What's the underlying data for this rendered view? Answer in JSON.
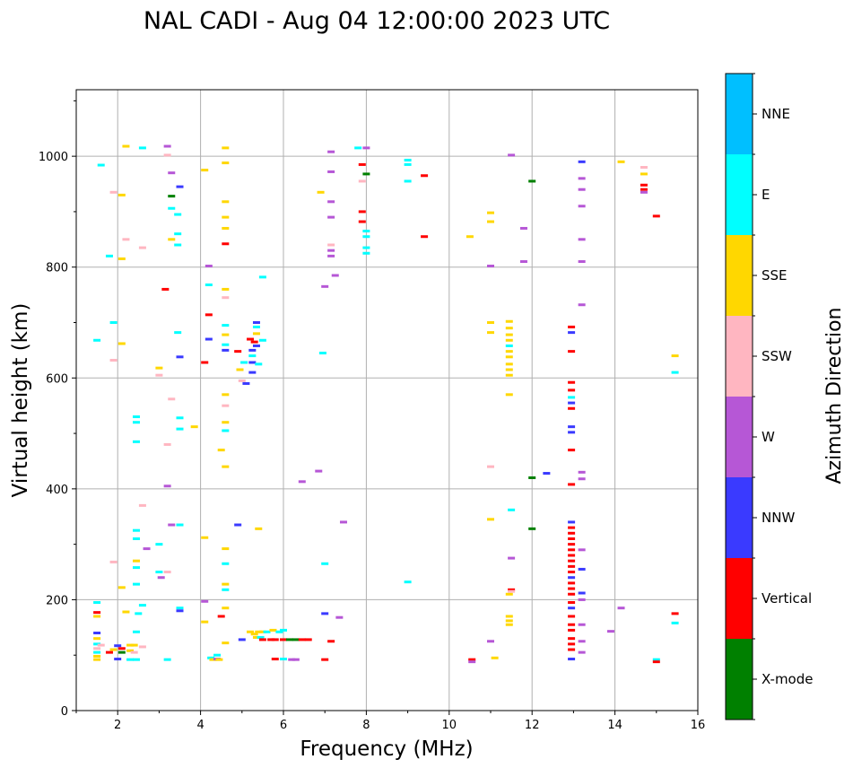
{
  "chart_data": {
    "type": "scatter",
    "title": "NAL CADI - Aug 04 12:00:00 2023 UTC",
    "xlabel": "Frequency (MHz)",
    "ylabel": "Virtual height (km)",
    "xlim": [
      1,
      16
    ],
    "ylim": [
      0,
      1120
    ],
    "xticks": [
      2,
      4,
      6,
      8,
      10,
      12,
      14,
      16
    ],
    "yticks": [
      0,
      200,
      400,
      600,
      800,
      1000
    ],
    "grid": true,
    "colorbar": {
      "label": "Azimuth Direction",
      "categories": [
        "X-mode",
        "Vertical",
        "NNW",
        "W",
        "SSW",
        "SSE",
        "E",
        "NNE"
      ],
      "colors": [
        "#008000",
        "#ff0000",
        "#3a3aff",
        "#b657d6",
        "#ffb6c1",
        "#ffd700",
        "#00ffff",
        "#00bfff"
      ]
    },
    "points": [
      [
        1.5,
        195,
        "E"
      ],
      [
        1.5,
        177,
        "Vertical"
      ],
      [
        1.5,
        170,
        "SSE"
      ],
      [
        1.5,
        140,
        "NNW"
      ],
      [
        1.5,
        130,
        "SSE"
      ],
      [
        1.5,
        120,
        "E"
      ],
      [
        1.5,
        112,
        "SSW"
      ],
      [
        1.5,
        105,
        "E"
      ],
      [
        1.5,
        98,
        "SSE"
      ],
      [
        1.5,
        92,
        "SSE"
      ],
      [
        1.6,
        118,
        "SSW"
      ],
      [
        1.8,
        105,
        "Vertical"
      ],
      [
        1.9,
        110,
        "SSE"
      ],
      [
        1.5,
        668,
        "E"
      ],
      [
        1.6,
        984,
        "E"
      ],
      [
        1.8,
        820,
        "E"
      ],
      [
        1.9,
        700,
        "E"
      ],
      [
        1.9,
        632,
        "SSW"
      ],
      [
        1.9,
        268,
        "SSW"
      ],
      [
        1.9,
        935,
        "SSW"
      ],
      [
        2.0,
        117,
        "NNW"
      ],
      [
        2.0,
        93,
        "NNW"
      ],
      [
        2.1,
        112,
        "Vertical"
      ],
      [
        2.1,
        105,
        "X-mode"
      ],
      [
        2.1,
        222,
        "SSE"
      ],
      [
        2.1,
        815,
        "SSE"
      ],
      [
        2.1,
        930,
        "SSE"
      ],
      [
        2.1,
        662,
        "SSE"
      ],
      [
        2.2,
        1018,
        "SSE"
      ],
      [
        2.2,
        850,
        "SSW"
      ],
      [
        2.2,
        178,
        "SSE"
      ],
      [
        2.3,
        118,
        "SSE"
      ],
      [
        2.3,
        108,
        "SSE"
      ],
      [
        2.3,
        92,
        "E"
      ],
      [
        2.4,
        118,
        "SSE"
      ],
      [
        2.4,
        105,
        "SSW"
      ],
      [
        2.45,
        92,
        "E"
      ],
      [
        2.45,
        270,
        "SSE"
      ],
      [
        2.45,
        258,
        "E"
      ],
      [
        2.45,
        228,
        "E"
      ],
      [
        2.45,
        325,
        "E"
      ],
      [
        2.45,
        310,
        "E"
      ],
      [
        2.45,
        142,
        "E"
      ],
      [
        2.45,
        485,
        "E"
      ],
      [
        2.45,
        520,
        "E"
      ],
      [
        2.45,
        530,
        "E"
      ],
      [
        2.5,
        175,
        "E"
      ],
      [
        2.6,
        1015,
        "E"
      ],
      [
        2.6,
        835,
        "SSW"
      ],
      [
        2.6,
        370,
        "SSW"
      ],
      [
        2.6,
        190,
        "E"
      ],
      [
        2.6,
        115,
        "SSW"
      ],
      [
        2.7,
        292,
        "W"
      ],
      [
        3.0,
        618,
        "SSE"
      ],
      [
        3.0,
        605,
        "SSW"
      ],
      [
        3.0,
        300,
        "E"
      ],
      [
        3.0,
        250,
        "E"
      ],
      [
        3.05,
        240,
        "W"
      ],
      [
        3.15,
        760,
        "Vertical"
      ],
      [
        3.2,
        1018,
        "W"
      ],
      [
        3.2,
        1002,
        "SSW"
      ],
      [
        3.2,
        480,
        "SSW"
      ],
      [
        3.2,
        405,
        "W"
      ],
      [
        3.2,
        250,
        "SSW"
      ],
      [
        3.2,
        92,
        "E"
      ],
      [
        3.3,
        970,
        "W"
      ],
      [
        3.3,
        928,
        "X-mode"
      ],
      [
        3.3,
        906,
        "E"
      ],
      [
        3.3,
        850,
        "SSE"
      ],
      [
        3.3,
        562,
        "SSW"
      ],
      [
        3.3,
        335,
        "W"
      ],
      [
        3.45,
        895,
        "E"
      ],
      [
        3.45,
        860,
        "E"
      ],
      [
        3.45,
        840,
        "E"
      ],
      [
        3.45,
        682,
        "E"
      ],
      [
        3.5,
        945,
        "NNW"
      ],
      [
        3.5,
        638,
        "NNW"
      ],
      [
        3.5,
        528,
        "E"
      ],
      [
        3.5,
        508,
        "E"
      ],
      [
        3.5,
        335,
        "E"
      ],
      [
        3.5,
        185,
        "E"
      ],
      [
        3.5,
        180,
        "NNW"
      ],
      [
        3.85,
        512,
        "SSE"
      ],
      [
        4.1,
        975,
        "SSE"
      ],
      [
        4.1,
        628,
        "Vertical"
      ],
      [
        4.1,
        312,
        "SSE"
      ],
      [
        4.1,
        197,
        "W"
      ],
      [
        4.1,
        160,
        "SSE"
      ],
      [
        4.2,
        768,
        "E"
      ],
      [
        4.2,
        714,
        "Vertical"
      ],
      [
        4.2,
        670,
        "NNW"
      ],
      [
        4.2,
        802,
        "W"
      ],
      [
        4.25,
        95,
        "E"
      ],
      [
        4.3,
        92,
        "SSE"
      ],
      [
        4.4,
        100,
        "E"
      ],
      [
        4.4,
        93,
        "W"
      ],
      [
        4.45,
        92,
        "SSE"
      ],
      [
        4.5,
        470,
        "SSE"
      ],
      [
        4.5,
        170,
        "Vertical"
      ],
      [
        4.6,
        1015,
        "SSE"
      ],
      [
        4.6,
        988,
        "SSE"
      ],
      [
        4.6,
        918,
        "SSE"
      ],
      [
        4.6,
        890,
        "SSE"
      ],
      [
        4.6,
        870,
        "SSE"
      ],
      [
        4.6,
        842,
        "Vertical"
      ],
      [
        4.6,
        760,
        "SSE"
      ],
      [
        4.6,
        745,
        "SSW"
      ],
      [
        4.6,
        695,
        "E"
      ],
      [
        4.6,
        678,
        "SSE"
      ],
      [
        4.6,
        660,
        "E"
      ],
      [
        4.6,
        650,
        "NNW"
      ],
      [
        4.6,
        570,
        "SSE"
      ],
      [
        4.6,
        550,
        "SSW"
      ],
      [
        4.6,
        520,
        "SSE"
      ],
      [
        4.6,
        505,
        "E"
      ],
      [
        4.6,
        440,
        "SSE"
      ],
      [
        4.6,
        292,
        "SSE"
      ],
      [
        4.6,
        265,
        "E"
      ],
      [
        4.6,
        228,
        "SSE"
      ],
      [
        4.6,
        218,
        "E"
      ],
      [
        4.6,
        185,
        "SSE"
      ],
      [
        4.6,
        122,
        "SSE"
      ],
      [
        4.9,
        648,
        "Vertical"
      ],
      [
        4.9,
        335,
        "NNW"
      ],
      [
        4.95,
        615,
        "SSE"
      ],
      [
        5.0,
        595,
        "SSW"
      ],
      [
        5.05,
        628,
        "E"
      ],
      [
        5.1,
        590,
        "NNW"
      ],
      [
        5.2,
        670,
        "Vertical"
      ],
      [
        5.25,
        650,
        "NNW"
      ],
      [
        5.25,
        640,
        "E"
      ],
      [
        5.25,
        628,
        "NNW"
      ],
      [
        5.25,
        610,
        "NNW"
      ],
      [
        5.3,
        665,
        "Vertical"
      ],
      [
        5.35,
        700,
        "NNW"
      ],
      [
        5.35,
        692,
        "E"
      ],
      [
        5.35,
        680,
        "SSE"
      ],
      [
        5.35,
        658,
        "NNW"
      ],
      [
        5.4,
        625,
        "E"
      ],
      [
        5.4,
        328,
        "SSE"
      ],
      [
        5.5,
        782,
        "E"
      ],
      [
        5.5,
        668,
        "E"
      ],
      [
        5.0,
        128,
        "NNW"
      ],
      [
        5.2,
        142,
        "SSE"
      ],
      [
        5.3,
        138,
        "SSE"
      ],
      [
        5.35,
        132,
        "SSE"
      ],
      [
        5.4,
        142,
        "SSE"
      ],
      [
        5.45,
        132,
        "E"
      ],
      [
        5.5,
        128,
        "Vertical"
      ],
      [
        5.5,
        142,
        "SSE"
      ],
      [
        5.6,
        142,
        "E"
      ],
      [
        5.7,
        128,
        "Vertical"
      ],
      [
        5.75,
        145,
        "SSE"
      ],
      [
        5.8,
        128,
        "Vertical"
      ],
      [
        5.9,
        142,
        "E"
      ],
      [
        6.0,
        145,
        "E"
      ],
      [
        6.0,
        128,
        "Vertical"
      ],
      [
        6.15,
        128,
        "X-mode"
      ],
      [
        6.3,
        128,
        "X-mode"
      ],
      [
        6.45,
        128,
        "Vertical"
      ],
      [
        6.6,
        128,
        "Vertical"
      ],
      [
        5.8,
        93,
        "Vertical"
      ],
      [
        6.0,
        93,
        "E"
      ],
      [
        6.2,
        92,
        "W"
      ],
      [
        6.3,
        92,
        "W"
      ],
      [
        6.45,
        413,
        "W"
      ],
      [
        6.85,
        432,
        "W"
      ],
      [
        6.9,
        935,
        "SSE"
      ],
      [
        6.95,
        645,
        "E"
      ],
      [
        7.0,
        265,
        "E"
      ],
      [
        7.0,
        765,
        "W"
      ],
      [
        7.0,
        175,
        "NNW"
      ],
      [
        7.0,
        92,
        "Vertical"
      ],
      [
        7.15,
        1008,
        "W"
      ],
      [
        7.15,
        972,
        "W"
      ],
      [
        7.15,
        918,
        "W"
      ],
      [
        7.15,
        890,
        "W"
      ],
      [
        7.15,
        840,
        "SSW"
      ],
      [
        7.15,
        830,
        "W"
      ],
      [
        7.15,
        820,
        "W"
      ],
      [
        7.15,
        125,
        "Vertical"
      ],
      [
        7.25,
        785,
        "W"
      ],
      [
        7.35,
        168,
        "W"
      ],
      [
        7.45,
        340,
        "W"
      ],
      [
        7.8,
        1015,
        "E"
      ],
      [
        7.9,
        985,
        "Vertical"
      ],
      [
        7.9,
        955,
        "SSW"
      ],
      [
        7.9,
        900,
        "Vertical"
      ],
      [
        7.9,
        882,
        "Vertical"
      ],
      [
        8.0,
        968,
        "X-mode"
      ],
      [
        8.0,
        1015,
        "W"
      ],
      [
        8.0,
        865,
        "E"
      ],
      [
        8.0,
        855,
        "E"
      ],
      [
        8.0,
        835,
        "E"
      ],
      [
        8.0,
        825,
        "E"
      ],
      [
        9.0,
        993,
        "E"
      ],
      [
        9.0,
        985,
        "E"
      ],
      [
        9.0,
        955,
        "E"
      ],
      [
        9.0,
        232,
        "E"
      ],
      [
        9.4,
        965,
        "Vertical"
      ],
      [
        9.4,
        855,
        "Vertical"
      ],
      [
        10.5,
        855,
        "SSE"
      ],
      [
        10.55,
        92,
        "Vertical"
      ],
      [
        10.55,
        88,
        "W"
      ],
      [
        11.0,
        898,
        "SSE"
      ],
      [
        11.0,
        882,
        "SSE"
      ],
      [
        11.0,
        802,
        "W"
      ],
      [
        11.0,
        700,
        "SSE"
      ],
      [
        11.0,
        682,
        "SSE"
      ],
      [
        11.0,
        440,
        "SSW"
      ],
      [
        11.0,
        345,
        "SSE"
      ],
      [
        11.0,
        125,
        "W"
      ],
      [
        11.1,
        95,
        "SSE"
      ],
      [
        11.45,
        702,
        "SSE"
      ],
      [
        11.45,
        690,
        "SSE"
      ],
      [
        11.45,
        678,
        "SSE"
      ],
      [
        11.45,
        668,
        "SSE"
      ],
      [
        11.45,
        658,
        "E"
      ],
      [
        11.45,
        648,
        "SSE"
      ],
      [
        11.45,
        638,
        "SSE"
      ],
      [
        11.45,
        625,
        "SSE"
      ],
      [
        11.45,
        615,
        "SSE"
      ],
      [
        11.45,
        605,
        "SSE"
      ],
      [
        11.45,
        570,
        "SSE"
      ],
      [
        11.45,
        210,
        "SSE"
      ],
      [
        11.45,
        170,
        "SSE"
      ],
      [
        11.45,
        162,
        "SSE"
      ],
      [
        11.45,
        155,
        "SSE"
      ],
      [
        11.5,
        1002,
        "W"
      ],
      [
        11.5,
        362,
        "E"
      ],
      [
        11.5,
        275,
        "W"
      ],
      [
        11.5,
        218,
        "Vertical"
      ],
      [
        11.5,
        215,
        "SSW"
      ],
      [
        11.8,
        870,
        "W"
      ],
      [
        11.8,
        810,
        "W"
      ],
      [
        12.0,
        955,
        "X-mode"
      ],
      [
        12.0,
        420,
        "X-mode"
      ],
      [
        12.0,
        328,
        "X-mode"
      ],
      [
        12.35,
        428,
        "NNW"
      ],
      [
        12.95,
        692,
        "Vertical"
      ],
      [
        12.95,
        682,
        "NNW"
      ],
      [
        12.95,
        648,
        "Vertical"
      ],
      [
        12.95,
        592,
        "Vertical"
      ],
      [
        12.95,
        578,
        "Vertical"
      ],
      [
        12.95,
        565,
        "E"
      ],
      [
        12.95,
        555,
        "NNW"
      ],
      [
        12.95,
        545,
        "Vertical"
      ],
      [
        12.95,
        512,
        "NNW"
      ],
      [
        12.95,
        502,
        "NNW"
      ],
      [
        12.95,
        470,
        "Vertical"
      ],
      [
        12.95,
        408,
        "Vertical"
      ],
      [
        12.95,
        340,
        "NNW"
      ],
      [
        12.95,
        330,
        "Vertical"
      ],
      [
        12.95,
        320,
        "Vertical"
      ],
      [
        12.95,
        310,
        "Vertical"
      ],
      [
        12.95,
        300,
        "Vertical"
      ],
      [
        12.95,
        290,
        "Vertical"
      ],
      [
        12.95,
        280,
        "Vertical"
      ],
      [
        12.95,
        270,
        "Vertical"
      ],
      [
        12.95,
        260,
        "Vertical"
      ],
      [
        12.95,
        250,
        "Vertical"
      ],
      [
        12.95,
        240,
        "NNW"
      ],
      [
        12.95,
        230,
        "Vertical"
      ],
      [
        12.95,
        220,
        "Vertical"
      ],
      [
        12.95,
        210,
        "Vertical"
      ],
      [
        12.95,
        195,
        "Vertical"
      ],
      [
        12.95,
        185,
        "NNW"
      ],
      [
        12.95,
        170,
        "Vertical"
      ],
      [
        12.95,
        155,
        "Vertical"
      ],
      [
        12.95,
        145,
        "Vertical"
      ],
      [
        12.95,
        130,
        "Vertical"
      ],
      [
        12.95,
        120,
        "Vertical"
      ],
      [
        12.95,
        110,
        "Vertical"
      ],
      [
        12.95,
        93,
        "NNW"
      ],
      [
        13.2,
        990,
        "NNW"
      ],
      [
        13.2,
        960,
        "W"
      ],
      [
        13.2,
        940,
        "W"
      ],
      [
        13.2,
        910,
        "W"
      ],
      [
        13.2,
        850,
        "W"
      ],
      [
        13.2,
        810,
        "W"
      ],
      [
        13.2,
        732,
        "W"
      ],
      [
        13.2,
        430,
        "W"
      ],
      [
        13.2,
        418,
        "W"
      ],
      [
        13.2,
        290,
        "W"
      ],
      [
        13.2,
        255,
        "NNW"
      ],
      [
        13.2,
        212,
        "NNW"
      ],
      [
        13.2,
        200,
        "W"
      ],
      [
        13.2,
        155,
        "W"
      ],
      [
        13.2,
        125,
        "W"
      ],
      [
        13.2,
        105,
        "W"
      ],
      [
        13.9,
        143,
        "W"
      ],
      [
        14.15,
        990,
        "SSE"
      ],
      [
        14.15,
        185,
        "W"
      ],
      [
        14.7,
        980,
        "SSW"
      ],
      [
        14.7,
        968,
        "SSE"
      ],
      [
        14.7,
        948,
        "Vertical"
      ],
      [
        14.7,
        940,
        "Vertical"
      ],
      [
        14.7,
        935,
        "W"
      ],
      [
        15.0,
        892,
        "Vertical"
      ],
      [
        15.0,
        92,
        "E"
      ],
      [
        15.0,
        88,
        "Vertical"
      ],
      [
        15.45,
        640,
        "SSE"
      ],
      [
        15.45,
        610,
        "E"
      ],
      [
        15.45,
        175,
        "Vertical"
      ],
      [
        15.45,
        158,
        "E"
      ]
    ]
  }
}
